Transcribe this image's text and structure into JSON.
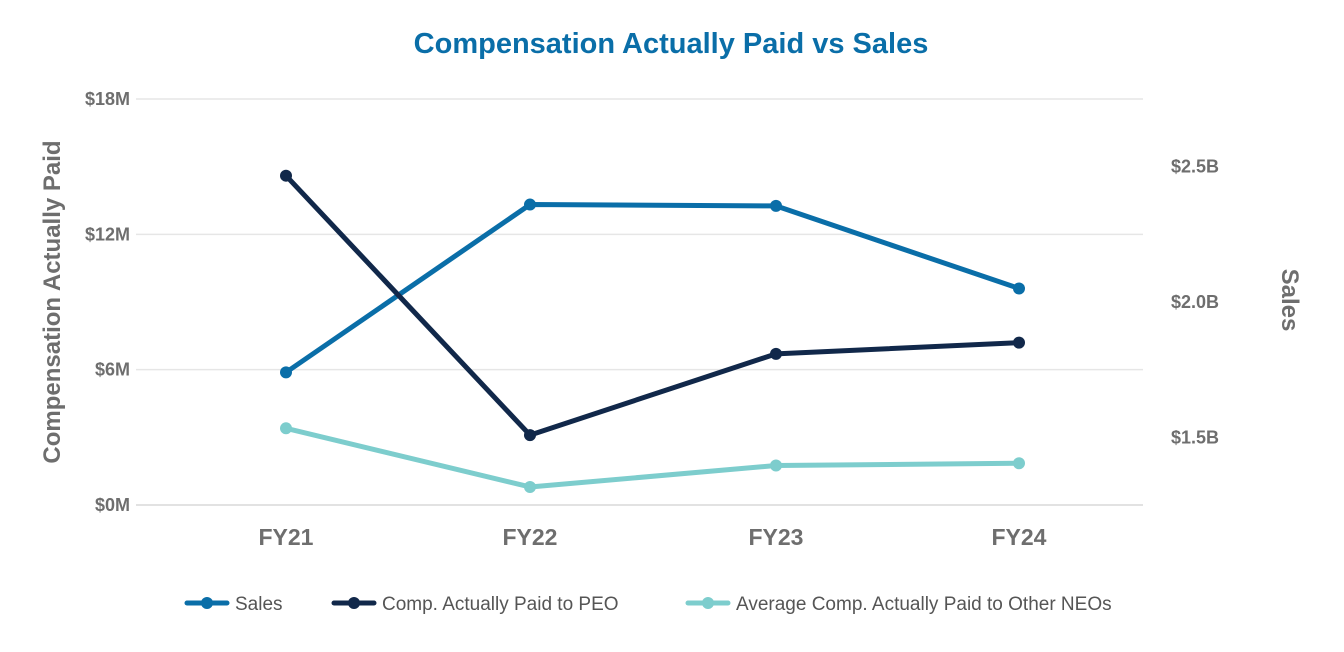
{
  "chart_data": {
    "type": "line",
    "title": "Compensation Actually Paid vs Sales",
    "categories": [
      "FY21",
      "FY22",
      "FY23",
      "FY24"
    ],
    "left_axis": {
      "label": "Compensation Actually Paid",
      "min": 0,
      "max": 18000000,
      "ticks": [
        {
          "value": 0,
          "label": "$0M"
        },
        {
          "value": 6000000,
          "label": "$6M"
        },
        {
          "value": 12000000,
          "label": "$12M"
        },
        {
          "value": 18000000,
          "label": "$18M"
        }
      ]
    },
    "right_axis": {
      "label": "Sales",
      "min": 1.25,
      "max": 2.75,
      "ticks": [
        {
          "value": 1.5,
          "label": "$1.5B"
        },
        {
          "value": 2.0,
          "label": "$2.0B"
        },
        {
          "value": 2.5,
          "label": "$2.5B"
        }
      ]
    },
    "series": [
      {
        "name": "Sales",
        "axis": "right",
        "color": "#0a6ea8",
        "values": [
          1.74,
          2.36,
          2.355,
          2.05
        ]
      },
      {
        "name": "Comp. Actually Paid to PEO",
        "axis": "left",
        "color": "#11284a",
        "values": [
          14600000,
          3100000,
          6700000,
          7200000
        ]
      },
      {
        "name": "Average Comp. Actually Paid to Other NEOs",
        "axis": "left",
        "color": "#7dcdcd",
        "values": [
          3400000,
          800000,
          1750000,
          1850000
        ]
      }
    ],
    "title_color": "#0a6ea8",
    "grid": true,
    "legend_position": "bottom"
  }
}
